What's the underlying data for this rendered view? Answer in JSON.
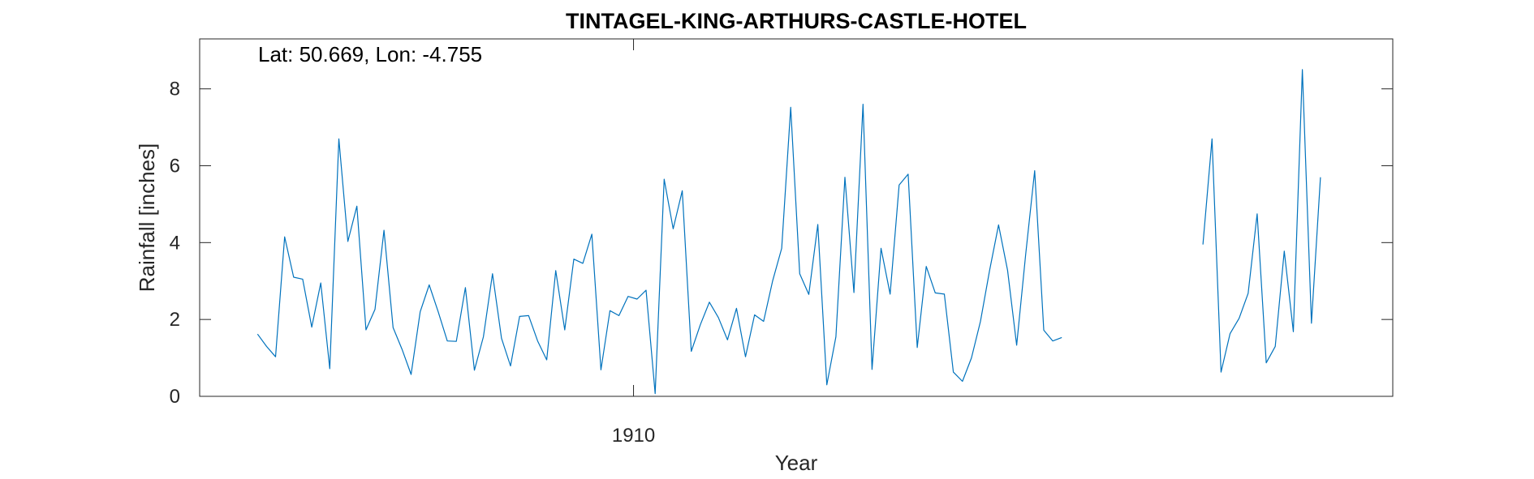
{
  "chart_data": {
    "type": "line",
    "title": "TINTAGEL-KING-ARTHURS-CASTLE-HOTEL",
    "annotation": "Lat: 50.669, Lon: -4.755",
    "xlabel": "Year",
    "ylabel": "Rainfall [inches]",
    "xlim": [
      1900.0,
      1927.5
    ],
    "ylim": [
      0,
      9.3
    ],
    "xticks": [
      1910
    ],
    "xtick_labels": [
      "1910"
    ],
    "yticks": [
      0,
      2,
      4,
      6,
      8
    ],
    "ytick_labels": [
      "0",
      "2",
      "4",
      "6",
      "8"
    ],
    "grid": false,
    "line_color": "#0072BD",
    "axis_color": "#262626",
    "series": [
      {
        "start": 1901.333,
        "step": 0.2083,
        "values": [
          1.62,
          1.3,
          1.03,
          4.15,
          3.1,
          3.05,
          1.8,
          2.95,
          0.72,
          6.7,
          4.03,
          4.95,
          1.73,
          2.26,
          4.32,
          1.79,
          1.22,
          0.57,
          2.2,
          2.9,
          2.2,
          1.44,
          1.43,
          2.83,
          0.68,
          1.55,
          3.19,
          1.51,
          0.79,
          2.08,
          2.1,
          1.44,
          0.95,
          3.27,
          1.73,
          3.57,
          3.46,
          4.22,
          0.69,
          2.23,
          2.1,
          2.6,
          2.53,
          2.76,
          0.07,
          5.65,
          4.36,
          5.35,
          1.17,
          1.86,
          2.45,
          2.05,
          1.47,
          2.29,
          1.03,
          2.12,
          1.95,
          3.0,
          3.85,
          7.52,
          3.19,
          2.65,
          4.47,
          0.3,
          1.55,
          5.7,
          2.7,
          7.6,
          0.7,
          3.85,
          2.66,
          5.5,
          5.78,
          1.27,
          3.38,
          2.69,
          2.66,
          0.63,
          0.39,
          1.0,
          1.95,
          3.27,
          4.46,
          3.28,
          1.33,
          3.69,
          5.87,
          1.72,
          1.44,
          1.53
        ]
      },
      {
        "start": 1923.125,
        "step": 0.2083,
        "values": [
          3.95,
          6.7,
          0.63,
          1.63,
          2.03,
          2.68,
          4.75,
          0.87,
          1.3,
          3.78,
          1.68,
          8.5,
          1.9,
          5.7
        ]
      }
    ]
  }
}
